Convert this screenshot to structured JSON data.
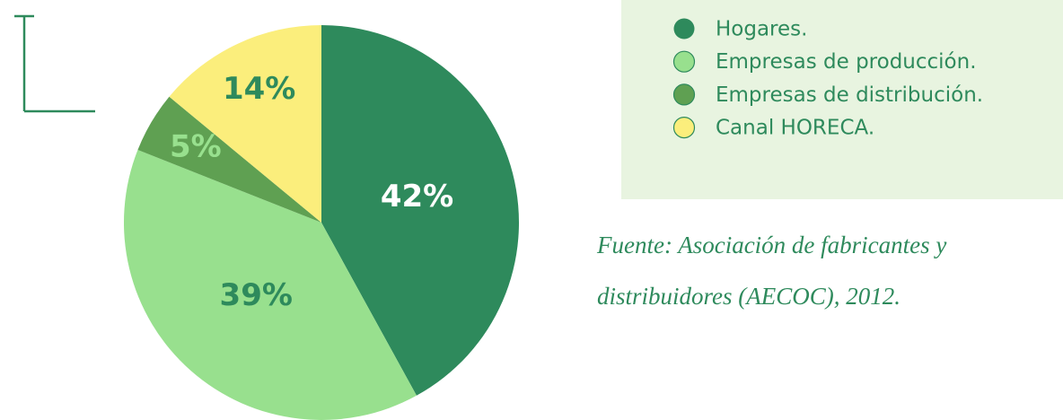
{
  "chart_data": {
    "type": "pie",
    "categories": [
      "Hogares.",
      "Empresas de producción.",
      "Empresas de distribución.",
      "Canal HORECA."
    ],
    "values": [
      42,
      39,
      5,
      14
    ],
    "value_labels": [
      "42%",
      "39%",
      "5%",
      "14%"
    ],
    "colors": [
      "#2e8a5c",
      "#98e08e",
      "#5fa052",
      "#fbee7c"
    ],
    "label_colors": [
      "#ffffff",
      "#2e8a5c",
      "#98e08e",
      "#2e8a5c"
    ],
    "source": [
      "Fuente: Asociación de fabricantes y",
      "distribuidores (AECOC), 2012."
    ]
  }
}
